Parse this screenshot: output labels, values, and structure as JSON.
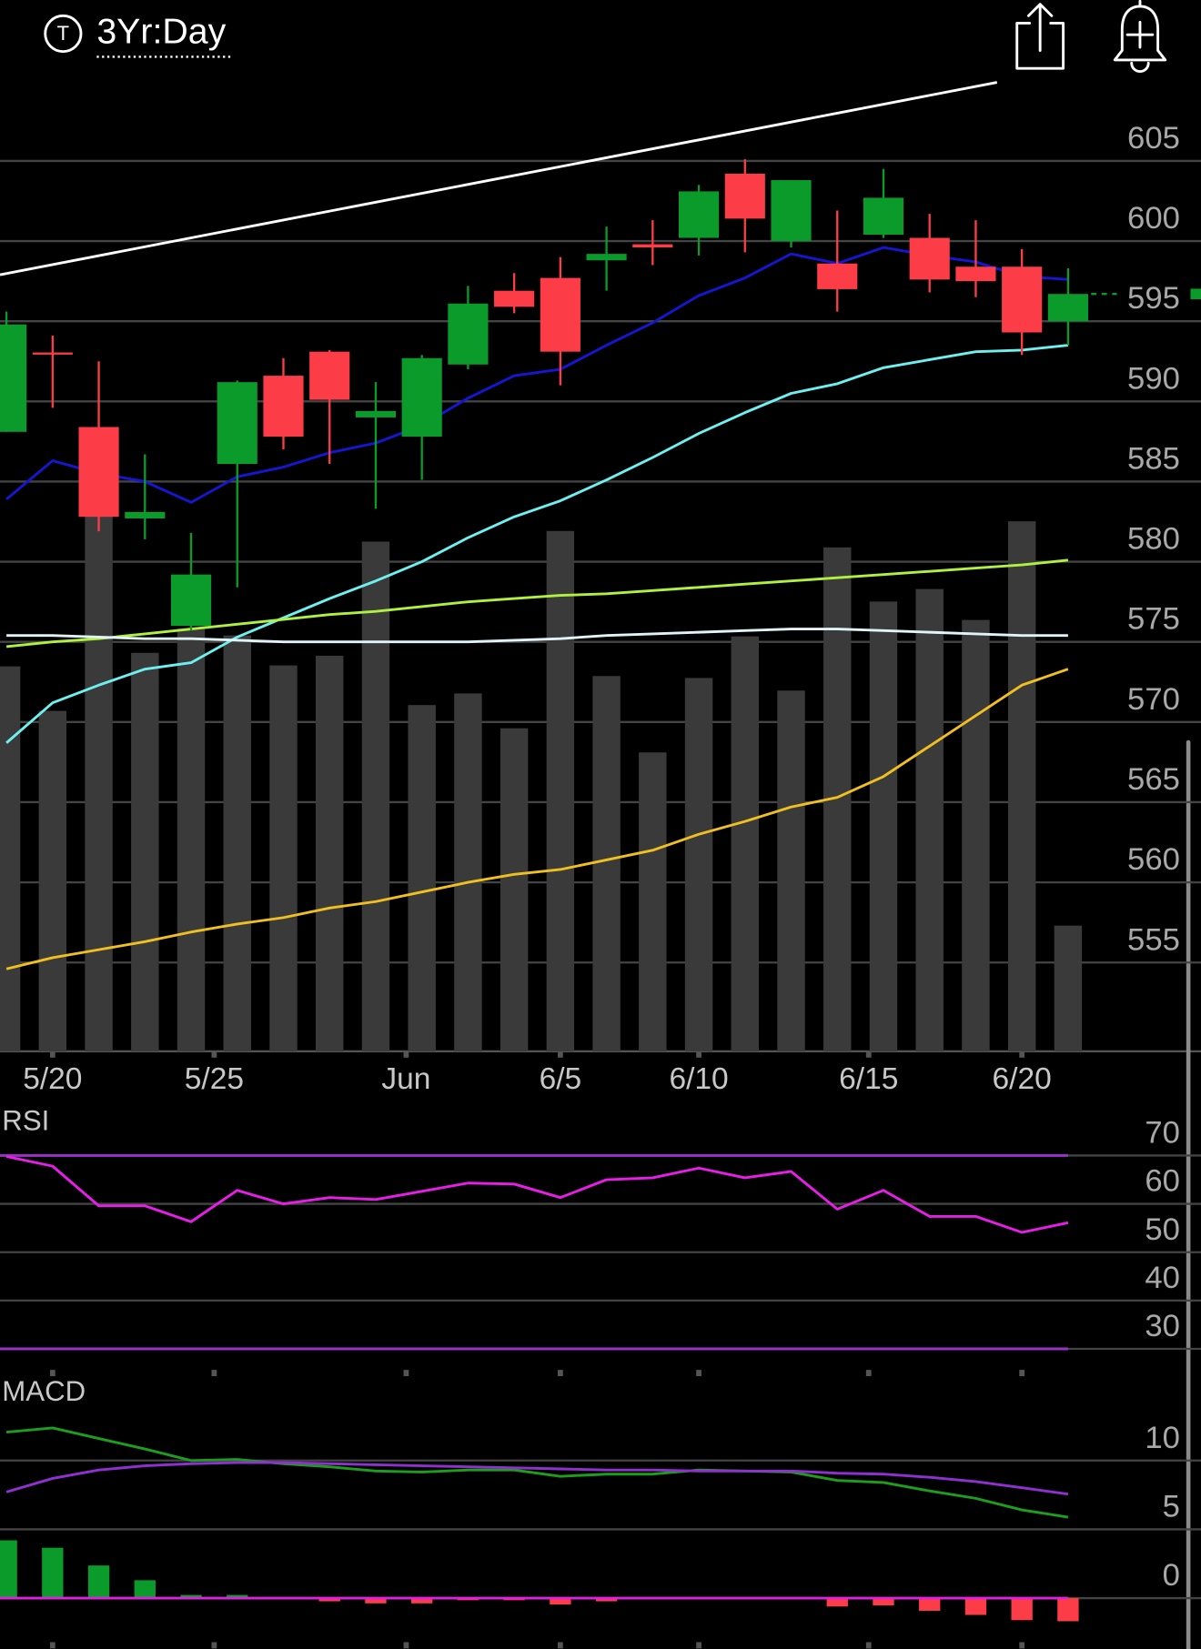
{
  "header": {
    "icon": "T",
    "period": "3Yr:Day"
  },
  "chart_data": [
    {
      "type": "candlestick",
      "x": [
        0,
        1,
        2,
        3,
        4,
        5,
        6,
        7,
        8,
        9,
        10,
        11,
        12,
        13,
        14,
        15,
        16,
        17,
        18,
        19,
        20,
        21,
        22,
        23
      ],
      "xlim": [
        -0.14,
        25.88
      ],
      "xticks": [
        {
          "value": 1,
          "label": "5/20"
        },
        {
          "value": 4.5,
          "label": "5/25"
        },
        {
          "value": 8.66,
          "label": "Jun"
        },
        {
          "value": 12,
          "label": "6/5"
        },
        {
          "value": 15,
          "label": "6/10"
        },
        {
          "value": 18.68,
          "label": "6/15"
        },
        {
          "value": 22,
          "label": "6/20"
        }
      ],
      "ylim": [
        549.46,
        609.79
      ],
      "yticks": [
        555,
        560,
        565,
        570,
        575,
        580,
        585,
        590,
        595,
        600,
        605
      ],
      "grid": true,
      "open": [
        588.1,
        593.05,
        588.4,
        582.7,
        576.0,
        586.1,
        591.6,
        593.1,
        589.0,
        587.8,
        592.3,
        596.9,
        597.7,
        598.8,
        599.8,
        600.2,
        604.2,
        600.0,
        598.6,
        600.4,
        600.2,
        598.4,
        598.4,
        595.0
      ],
      "high": [
        595.6,
        594.1,
        592.5,
        586.7,
        581.8,
        591.3,
        592.7,
        593.2,
        591.2,
        592.9,
        597.2,
        598.0,
        599.0,
        600.9,
        601.3,
        603.5,
        605.1,
        603.8,
        601.9,
        604.5,
        601.7,
        601.3,
        599.5,
        598.3
      ],
      "low": [
        588.1,
        589.6,
        581.9,
        581.4,
        575.7,
        578.4,
        587.0,
        586.1,
        583.3,
        585.1,
        592.0,
        595.5,
        591.0,
        596.9,
        598.5,
        599.1,
        599.3,
        599.6,
        595.6,
        600.2,
        596.8,
        596.5,
        592.9,
        593.5
      ],
      "close": [
        594.8,
        593.0,
        582.8,
        583.1,
        579.2,
        591.2,
        587.8,
        590.1,
        589.4,
        592.7,
        596.1,
        595.9,
        593.1,
        599.2,
        599.6,
        603.1,
        601.4,
        603.8,
        597.0,
        602.7,
        597.6,
        597.5,
        594.3,
        596.7
      ],
      "up_color": "#0b9b2b",
      "down_color": "#fc3d47",
      "volume": {
        "values": [
          39.8,
          35.2,
          55.4,
          41.2,
          43.7,
          43.0,
          39.9,
          40.9,
          52.7,
          35.8,
          37.0,
          33.4,
          53.8,
          38.8,
          30.9,
          38.6,
          42.9,
          37.3,
          52.1,
          46.5,
          47.8,
          44.6,
          54.8,
          13.0
        ],
        "vlim": [
          0,
          100
        ],
        "color": "#3a3a3a"
      },
      "series": [
        {
          "color": "#1616d2",
          "values": [
            583.9,
            586.3,
            585.5,
            585.0,
            583.7,
            585.3,
            585.9,
            586.8,
            587.4,
            588.5,
            590.2,
            591.6,
            592.0,
            593.5,
            594.9,
            596.6,
            597.7,
            599.2,
            598.6,
            599.6,
            599.1,
            598.7,
            597.8,
            597.6
          ]
        },
        {
          "color": "#6ff0f0",
          "values": [
            568.7,
            571.2,
            572.3,
            573.3,
            573.7,
            575.3,
            576.5,
            577.7,
            578.8,
            580.0,
            581.5,
            582.8,
            583.8,
            585.1,
            586.5,
            588.0,
            589.3,
            590.5,
            591.1,
            592.1,
            592.6,
            593.1,
            593.2,
            593.5
          ]
        },
        {
          "color": "#b0f040",
          "values": [
            574.7,
            575.0,
            575.2,
            575.5,
            575.8,
            576.1,
            576.4,
            576.7,
            576.9,
            577.2,
            577.5,
            577.7,
            577.9,
            578.0,
            578.2,
            578.4,
            578.6,
            578.8,
            579.0,
            579.2,
            579.4,
            579.6,
            579.8,
            580.1
          ]
        },
        {
          "color": "#e0f4f8",
          "values": [
            575.4,
            575.4,
            575.3,
            575.2,
            575.2,
            575.1,
            575.0,
            575.0,
            575.0,
            575.0,
            575.0,
            575.1,
            575.2,
            575.4,
            575.5,
            575.6,
            575.7,
            575.8,
            575.8,
            575.7,
            575.6,
            575.5,
            575.4,
            575.4
          ]
        },
        {
          "color": "#f0c020",
          "values": [
            554.6,
            555.3,
            555.8,
            556.3,
            556.9,
            557.4,
            557.8,
            558.4,
            558.8,
            559.4,
            560.0,
            560.5,
            560.8,
            561.4,
            562.0,
            563.0,
            563.8,
            564.7,
            565.3,
            566.6,
            568.5,
            570.4,
            572.3,
            573.3
          ]
        }
      ],
      "trendline": {
        "x": [
          -0.14,
          21.46
        ],
        "y": [
          597.9,
          609.9
        ],
        "color": "#ffffff"
      }
    },
    {
      "type": "line",
      "title": "RSI",
      "x": [
        0,
        1,
        2,
        3,
        4,
        5,
        6,
        7,
        8,
        9,
        10,
        11,
        12,
        13,
        14,
        15,
        16,
        17,
        18,
        19,
        20,
        21,
        22,
        23
      ],
      "xlim": [
        -0.14,
        25.88
      ],
      "ylim": [
        25.65,
        79.6
      ],
      "yticks": [
        30,
        40,
        50,
        60,
        70
      ],
      "grid": true,
      "levels": [
        70,
        30
      ],
      "level_color": "#9b30c8",
      "series": [
        {
          "color": "#e81ee8",
          "values": [
            69.8,
            67.8,
            59.6,
            59.6,
            56.3,
            62.8,
            60.0,
            61.3,
            60.9,
            62.6,
            64.3,
            64.1,
            61.3,
            65.0,
            65.4,
            67.4,
            65.4,
            66.7,
            58.9,
            62.8,
            57.4,
            57.4,
            54.1,
            56.1
          ]
        }
      ]
    },
    {
      "type": "line",
      "title": "MACD",
      "x": [
        0,
        1,
        2,
        3,
        4,
        5,
        6,
        7,
        8,
        9,
        10,
        11,
        12,
        13,
        14,
        15,
        16,
        17,
        18,
        19,
        20,
        21,
        22,
        23
      ],
      "xlim": [
        -0.14,
        25.88
      ],
      "ylim": [
        -3.2,
        15.9
      ],
      "yticks": [
        0,
        5,
        10
      ],
      "grid": true,
      "levels": [
        0
      ],
      "level_color": "#e020e0",
      "series": [
        {
          "color": "#1e9e1e",
          "values": [
            12.06,
            12.37,
            11.6,
            10.84,
            10.0,
            10.08,
            9.77,
            9.54,
            9.24,
            9.16,
            9.31,
            9.31,
            8.85,
            9.01,
            9.01,
            9.31,
            9.24,
            9.16,
            8.55,
            8.4,
            7.79,
            7.25,
            6.41,
            5.88
          ]
        },
        {
          "color": "#9030d0",
          "values": [
            7.71,
            8.7,
            9.31,
            9.62,
            9.77,
            9.85,
            9.85,
            9.77,
            9.69,
            9.62,
            9.54,
            9.47,
            9.39,
            9.31,
            9.31,
            9.24,
            9.24,
            9.24,
            9.08,
            9.01,
            8.78,
            8.47,
            8.02,
            7.56
          ]
        }
      ],
      "histogram": {
        "values": [
          4.2,
          3.66,
          2.37,
          1.3,
          0.23,
          0.23,
          -0.05,
          -0.23,
          -0.38,
          -0.38,
          -0.15,
          -0.15,
          -0.46,
          -0.23,
          -0.08,
          -0.05,
          -0.05,
          -0.05,
          -0.61,
          -0.53,
          -0.92,
          -1.22,
          -1.6,
          -1.68
        ],
        "up_color": "#0b9b2b",
        "down_color": "#fc3d47"
      }
    }
  ]
}
